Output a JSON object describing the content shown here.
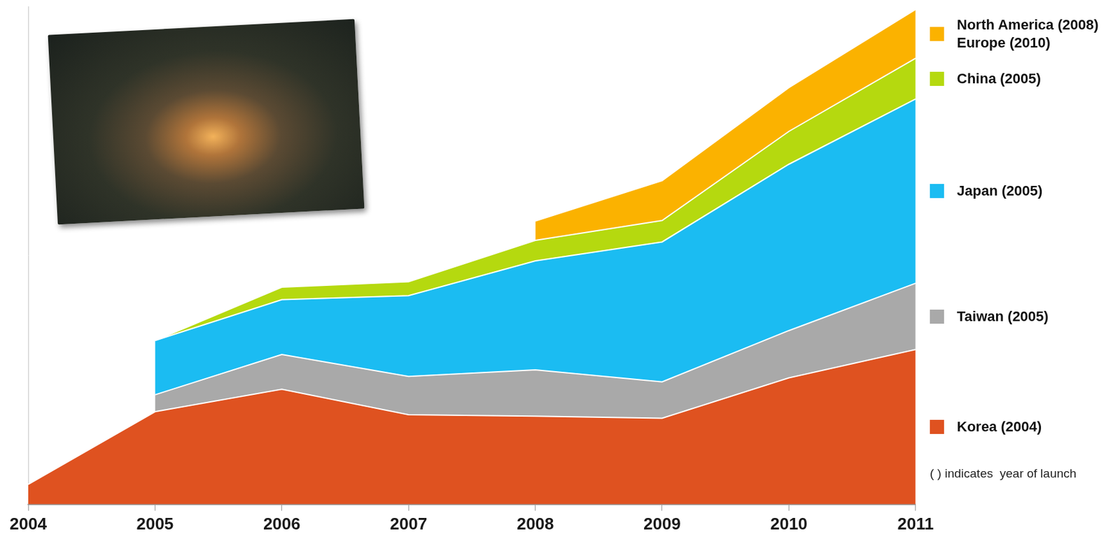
{
  "chart_data": {
    "type": "area",
    "stacked": true,
    "grid": false,
    "legend": "right",
    "tick_labels": "x",
    "categories": [
      "2004",
      "2005",
      "2006",
      "2007",
      "2008",
      "2009",
      "2010",
      "2011"
    ],
    "ylim": [
      0,
      100
    ],
    "series": [
      {
        "name": "Korea (2004)",
        "color": "#df5220",
        "values": [
          4,
          18.6,
          23.1,
          18,
          17.7,
          17.3,
          25.4,
          31.1
        ]
      },
      {
        "name": "Taiwan (2005)",
        "color": "#a9a9a9",
        "values": [
          null,
          3.4,
          7,
          7.7,
          9.3,
          7.3,
          9.5,
          13.3
        ]
      },
      {
        "name": "Japan (2005)",
        "color": "#1bbcf2",
        "values": [
          null,
          10.9,
          11,
          16.2,
          21.9,
          28.1,
          33.4,
          37
        ]
      },
      {
        "name": "China (2005)",
        "color": "#b5d90f",
        "values": [
          null,
          0,
          2.5,
          2.8,
          4.1,
          4.3,
          6.6,
          8.2
        ]
      },
      {
        "name": "North America (2008)\nEurope (2010)",
        "color": "#fbb200",
        "values": [
          null,
          null,
          null,
          null,
          3.9,
          8,
          8.8,
          9.8
        ]
      }
    ],
    "annotations": [
      "( ) indicates  year of launch"
    ]
  }
}
